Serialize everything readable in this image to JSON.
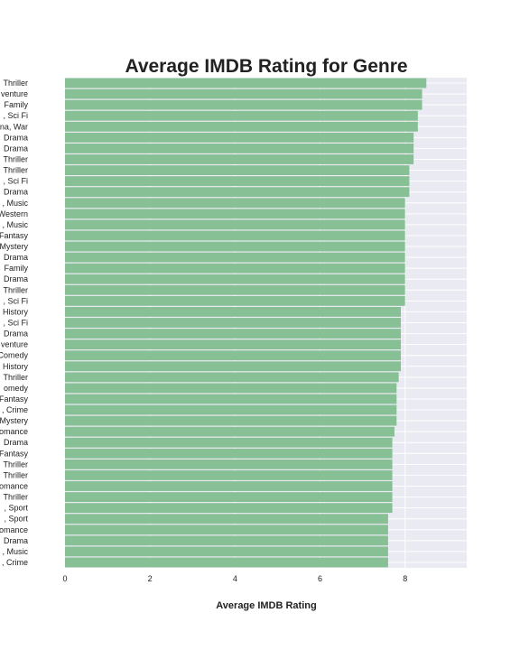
{
  "chart_data": {
    "type": "bar",
    "orientation": "horizontal",
    "title": "Average IMDB Rating for Genre",
    "xlabel": "Average IMDB Rating",
    "ylabel": "",
    "xlim": [
      0,
      9.45
    ],
    "xticks": [
      0,
      2,
      4,
      6,
      8
    ],
    "grid": true,
    "legend": "none",
    "bar_color": "#88c096",
    "plot_background": "#eaeaf2",
    "categories": [
      "Thriller",
      "venture",
      "Family",
      ", Sci Fi",
      "na, War",
      "Drama",
      "Drama",
      "Thriller",
      "Thriller",
      ", Sci Fi",
      "Drama",
      ", Music",
      "Western",
      ", Music",
      "Fantasy",
      "Mystery",
      "Drama",
      "Family",
      "Drama",
      "Thriller",
      ", Sci Fi",
      "History",
      ", Sci Fi",
      "Drama",
      "venture",
      "Comedy",
      "History",
      "Thriller",
      "omedy",
      "Fantasy",
      ", Crime",
      "Mystery",
      "omance",
      "Drama",
      "Fantasy",
      "Thriller",
      "Thriller",
      "omance",
      "Thriller",
      ", Sport",
      ", Sport",
      "omance",
      "Drama",
      ", Music",
      ", Crime"
    ],
    "values": [
      8.5,
      8.4,
      8.4,
      8.3,
      8.3,
      8.2,
      8.2,
      8.2,
      8.1,
      8.1,
      8.1,
      8.0,
      8.0,
      8.0,
      8.0,
      8.0,
      8.0,
      8.0,
      8.0,
      8.0,
      8.0,
      7.9,
      7.9,
      7.9,
      7.9,
      7.9,
      7.9,
      7.85,
      7.8,
      7.8,
      7.8,
      7.8,
      7.75,
      7.7,
      7.7,
      7.7,
      7.7,
      7.7,
      7.7,
      7.7,
      7.6,
      7.6,
      7.6,
      7.6,
      7.6
    ]
  }
}
